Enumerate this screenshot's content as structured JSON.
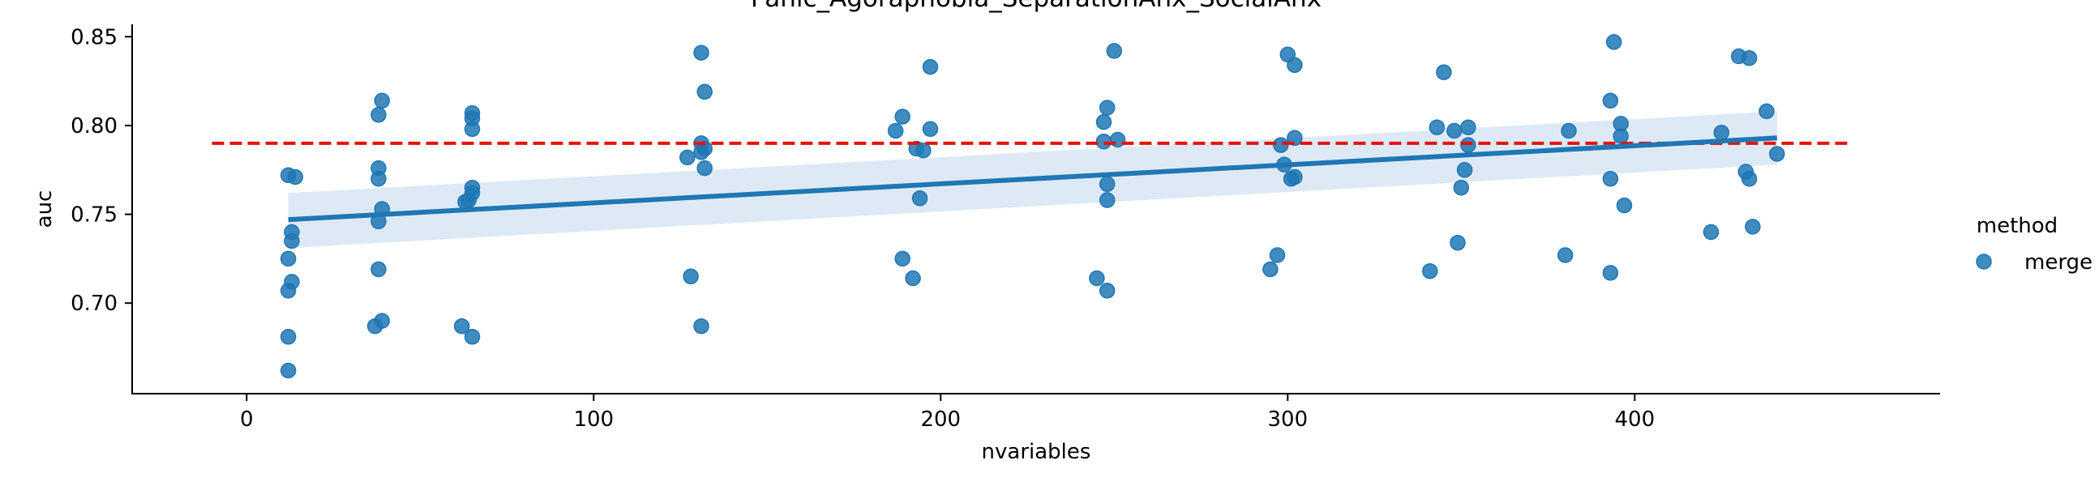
{
  "chart_data": {
    "type": "scatter",
    "title": "Panic_Agoraphobia_SeparationAnx_SocialAnx",
    "xlabel": "nvariables",
    "ylabel": "auc",
    "xlim": [
      -33,
      488
    ],
    "ylim": [
      0.649,
      0.857
    ],
    "xticks": [
      0,
      100,
      200,
      300,
      400
    ],
    "xtick_labels": [
      "0",
      "100",
      "200",
      "300",
      "400"
    ],
    "yticks": [
      0.7,
      0.75,
      0.8,
      0.85
    ],
    "ytick_labels": [
      "0.70",
      "0.75",
      "0.80",
      "0.85"
    ],
    "grid": false,
    "legend": {
      "title": "method",
      "position": "right",
      "entries": [
        "merge"
      ]
    },
    "reference_line": {
      "y": 0.79,
      "x_range": [
        -10,
        462
      ],
      "style": "dashed",
      "color": "#e3120b"
    },
    "regression": {
      "x_range": [
        12,
        441
      ],
      "start": 0.747,
      "end": 0.793,
      "ci_lower": [
        0.731,
        0.778
      ],
      "ci_upper": [
        0.762,
        0.808
      ],
      "color": "#1f77b4",
      "band_color": "#c6dcee"
    },
    "series": [
      {
        "name": "merge",
        "color": "#1f77b4",
        "points": [
          [
            12,
            0.772
          ],
          [
            14,
            0.771
          ],
          [
            13,
            0.74
          ],
          [
            13,
            0.735
          ],
          [
            12,
            0.725
          ],
          [
            13,
            0.712
          ],
          [
            12,
            0.707
          ],
          [
            12,
            0.681
          ],
          [
            12,
            0.662
          ],
          [
            39,
            0.814
          ],
          [
            38,
            0.806
          ],
          [
            38,
            0.776
          ],
          [
            38,
            0.77
          ],
          [
            39,
            0.753
          ],
          [
            38,
            0.746
          ],
          [
            38,
            0.719
          ],
          [
            39,
            0.69
          ],
          [
            37,
            0.687
          ],
          [
            65,
            0.807
          ],
          [
            65,
            0.804
          ],
          [
            65,
            0.798
          ],
          [
            65,
            0.765
          ],
          [
            65,
            0.762
          ],
          [
            64,
            0.758
          ],
          [
            63,
            0.757
          ],
          [
            62,
            0.687
          ],
          [
            65,
            0.681
          ],
          [
            131,
            0.841
          ],
          [
            132,
            0.819
          ],
          [
            131,
            0.79
          ],
          [
            132,
            0.787
          ],
          [
            131,
            0.785
          ],
          [
            127,
            0.782
          ],
          [
            132,
            0.776
          ],
          [
            128,
            0.715
          ],
          [
            131,
            0.687
          ],
          [
            197,
            0.833
          ],
          [
            189,
            0.805
          ],
          [
            187,
            0.797
          ],
          [
            197,
            0.798
          ],
          [
            193,
            0.787
          ],
          [
            195,
            0.786
          ],
          [
            194,
            0.759
          ],
          [
            189,
            0.725
          ],
          [
            192,
            0.714
          ],
          [
            250,
            0.842
          ],
          [
            248,
            0.81
          ],
          [
            247,
            0.802
          ],
          [
            251,
            0.792
          ],
          [
            247,
            0.791
          ],
          [
            248,
            0.767
          ],
          [
            248,
            0.758
          ],
          [
            245,
            0.714
          ],
          [
            248,
            0.707
          ],
          [
            300,
            0.84
          ],
          [
            302,
            0.834
          ],
          [
            302,
            0.793
          ],
          [
            298,
            0.789
          ],
          [
            299,
            0.778
          ],
          [
            301,
            0.77
          ],
          [
            302,
            0.771
          ],
          [
            297,
            0.727
          ],
          [
            295,
            0.719
          ],
          [
            345,
            0.83
          ],
          [
            343,
            0.799
          ],
          [
            348,
            0.797
          ],
          [
            352,
            0.799
          ],
          [
            352,
            0.789
          ],
          [
            351,
            0.775
          ],
          [
            350,
            0.765
          ],
          [
            349,
            0.734
          ],
          [
            341,
            0.718
          ],
          [
            394,
            0.847
          ],
          [
            393,
            0.814
          ],
          [
            396,
            0.801
          ],
          [
            396,
            0.794
          ],
          [
            381,
            0.797
          ],
          [
            393,
            0.77
          ],
          [
            397,
            0.755
          ],
          [
            380,
            0.727
          ],
          [
            393,
            0.717
          ],
          [
            430,
            0.839
          ],
          [
            433,
            0.838
          ],
          [
            438,
            0.808
          ],
          [
            425,
            0.796
          ],
          [
            441,
            0.784
          ],
          [
            432,
            0.774
          ],
          [
            433,
            0.77
          ],
          [
            434,
            0.743
          ],
          [
            422,
            0.74
          ]
        ]
      }
    ]
  }
}
